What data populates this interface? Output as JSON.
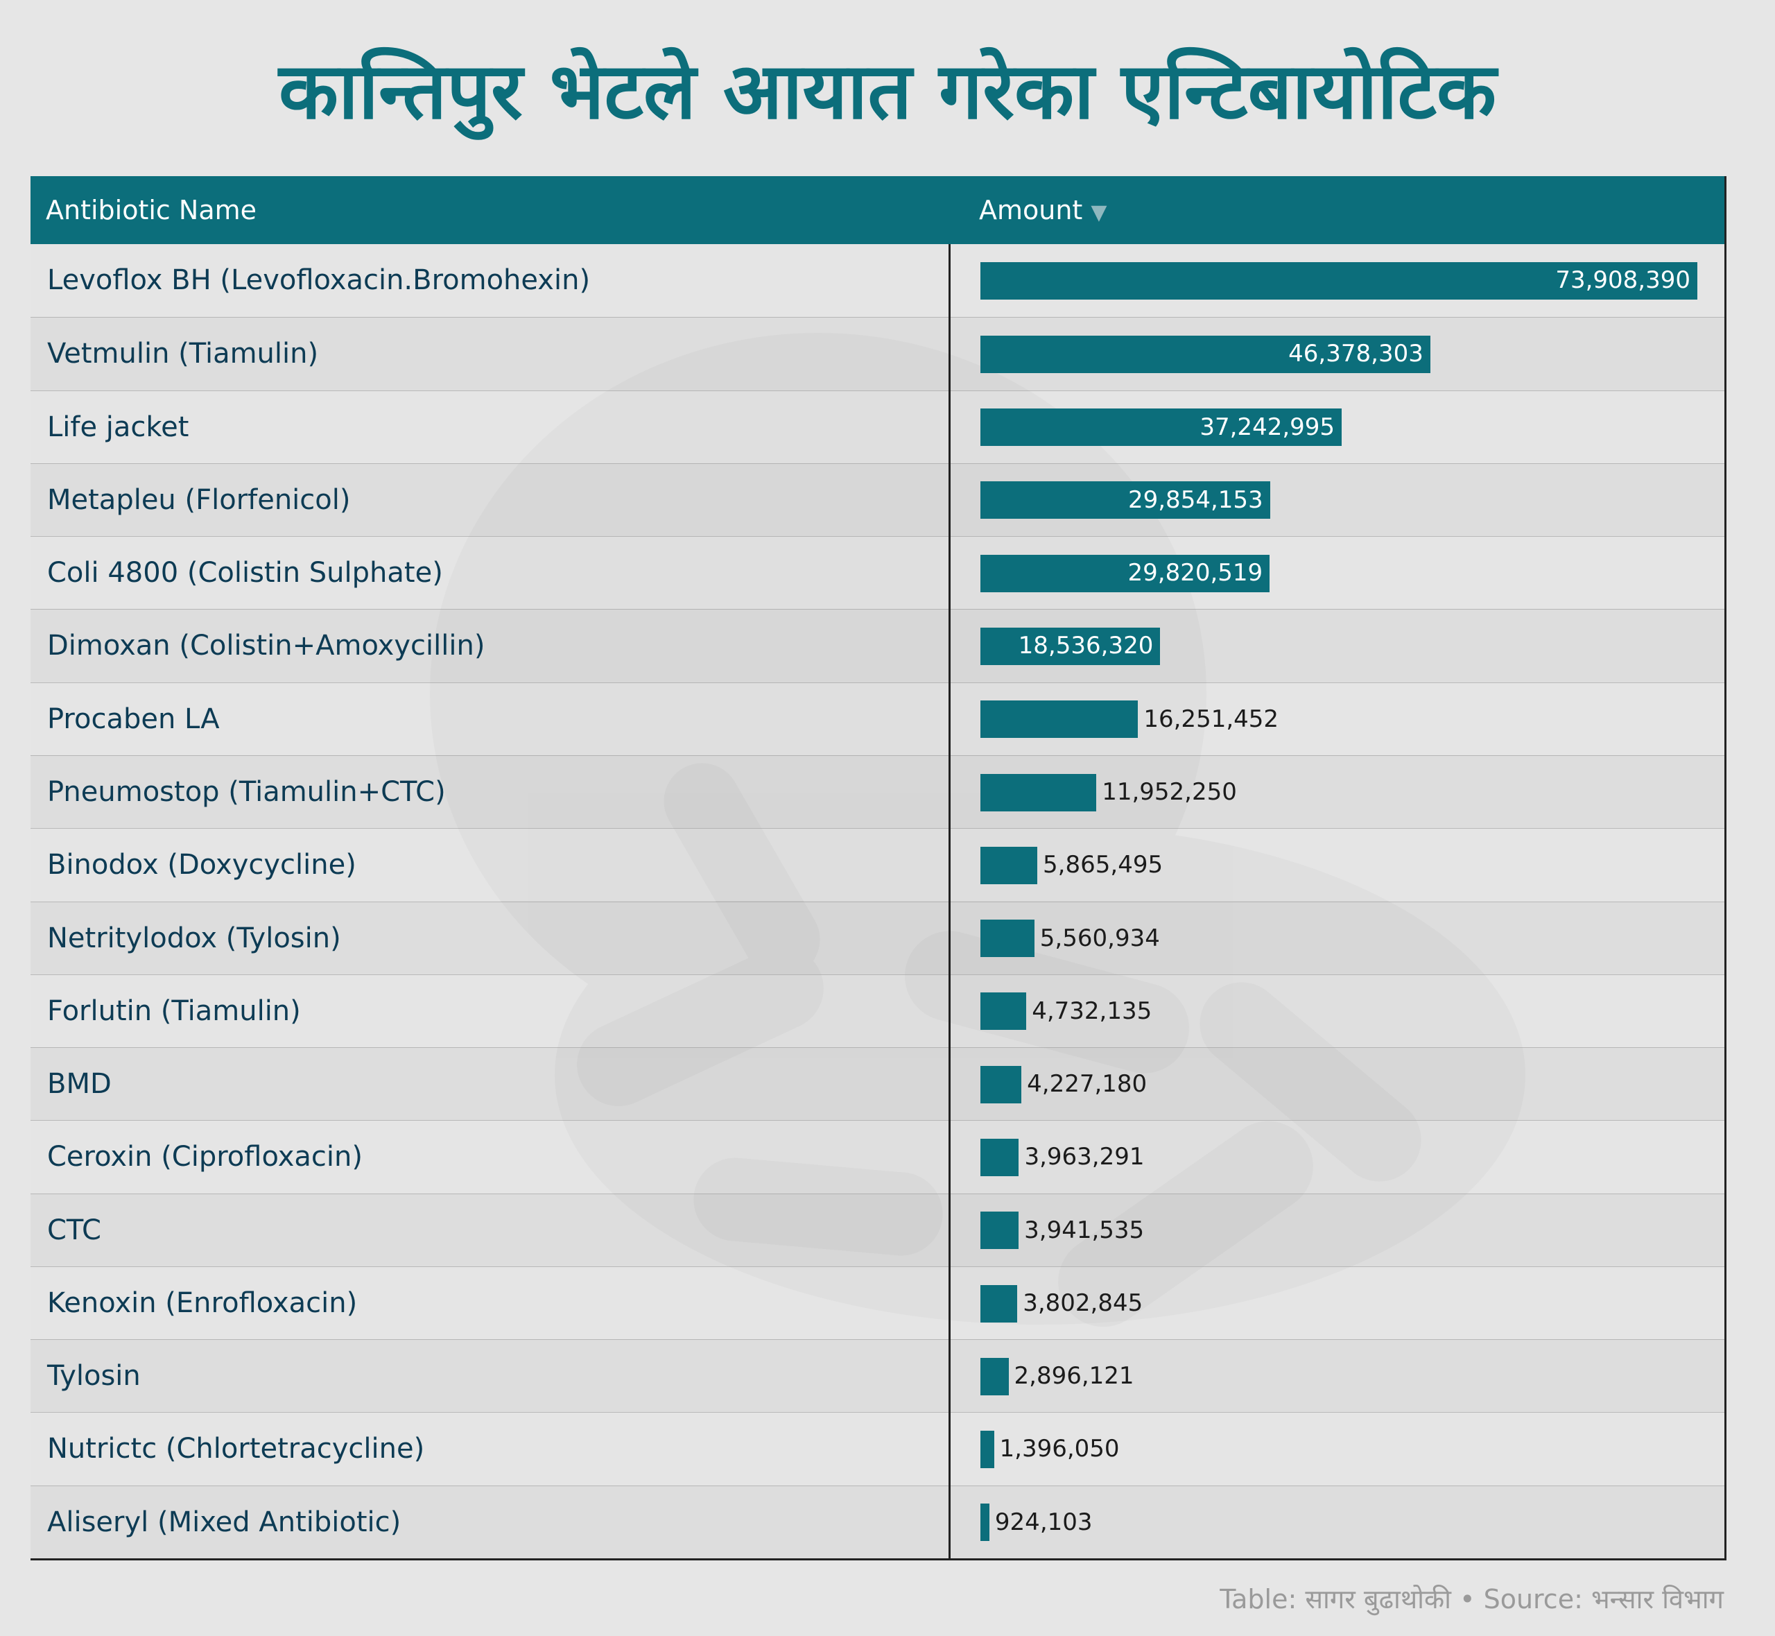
{
  "title": "कान्तिपुर भेटले आयात गरेका एन्टिबायोटिक",
  "table": {
    "headers": {
      "name": "Antibiotic Name",
      "amount": "Amount",
      "sort_indicator": "▼"
    }
  },
  "chart_data": {
    "type": "bar",
    "orientation": "horizontal",
    "title": "कान्तिपुर भेटले आयात गरेका एन्टिबायोटिक",
    "xlabel": "",
    "ylabel": "",
    "xlim": [
      0,
      73908390
    ],
    "bar_color": "#0c6e7b",
    "grid": false,
    "categories": [
      "Levoflox BH (Levofloxacin.Bromohexin)",
      "Vetmulin (Tiamulin)",
      "Life jacket",
      "Metapleu (Florfenicol)",
      "Coli 4800 (Colistin Sulphate)",
      "Dimoxan (Colistin+Amoxycillin)",
      "Procaben LA",
      "Pneumostop (Tiamulin+CTC)",
      "Binodox (Doxycycline)",
      "Netritylodox (Tylosin)",
      "Forlutin (Tiamulin)",
      "BMD",
      "Ceroxin (Ciprofloxacin)",
      "CTC",
      "Kenoxin (Enrofloxacin)",
      "Tylosin",
      "Nutrictc (Chlortetracycline)",
      "Aliseryl (Mixed Antibiotic)"
    ],
    "values": [
      73908390,
      46378303,
      37242995,
      29854153,
      29820519,
      18536320,
      16251452,
      11952250,
      5865495,
      5560934,
      4732135,
      4227180,
      3963291,
      3941535,
      3802845,
      2896121,
      1396050,
      924103
    ],
    "value_labels": [
      "73,908,390",
      "46,378,303",
      "37,242,995",
      "29,854,153",
      "29,820,519",
      "18,536,320",
      "16,251,452",
      "11,952,250",
      "5,865,495",
      "5,560,934",
      "4,732,135",
      "4,227,180",
      "3,963,291",
      "3,941,535",
      "3,802,845",
      "2,896,121",
      "1,396,050",
      "924,103"
    ]
  },
  "footer": "Table: सागर बुढाथोकी • Source: भन्सार विभाग"
}
